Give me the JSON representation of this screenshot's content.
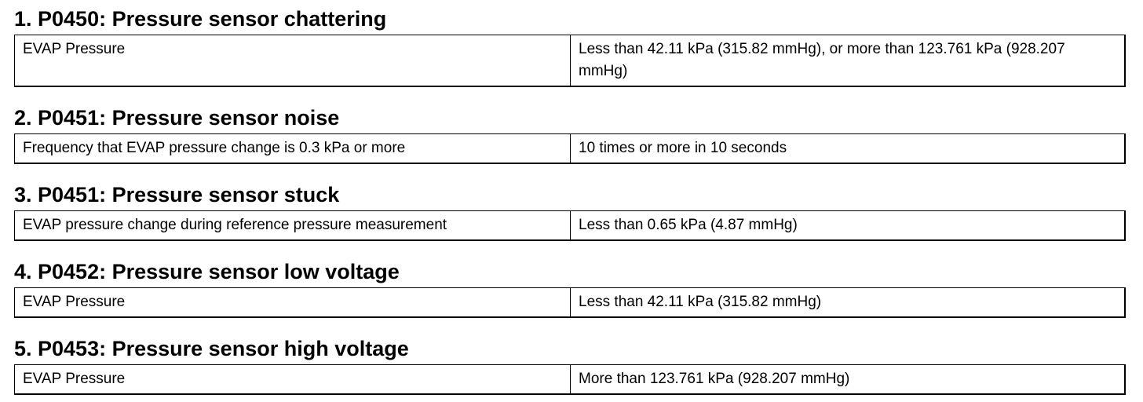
{
  "sections": [
    {
      "heading": "1. P0450: Pressure sensor chattering",
      "rows": [
        [
          "EVAP Pressure",
          "Less than 42.11 kPa (315.82 mmHg), or more than 123.761 kPa (928.207 mmHg)"
        ]
      ]
    },
    {
      "heading": "2. P0451: Pressure sensor noise",
      "rows": [
        [
          "Frequency that EVAP pressure change is 0.3 kPa or more",
          "10 times or more in 10 seconds"
        ]
      ]
    },
    {
      "heading": "3. P0451: Pressure sensor stuck",
      "rows": [
        [
          "EVAP pressure change during reference pressure measurement",
          "Less than 0.65 kPa (4.87 mmHg)"
        ]
      ]
    },
    {
      "heading": "4. P0452: Pressure sensor low voltage",
      "rows": [
        [
          "EVAP Pressure",
          "Less than 42.11 kPa (315.82 mmHg)"
        ]
      ]
    },
    {
      "heading": "5. P0453: Pressure sensor high voltage",
      "rows": [
        [
          "EVAP Pressure",
          "More than 123.761 kPa (928.207 mmHg)"
        ]
      ]
    }
  ]
}
